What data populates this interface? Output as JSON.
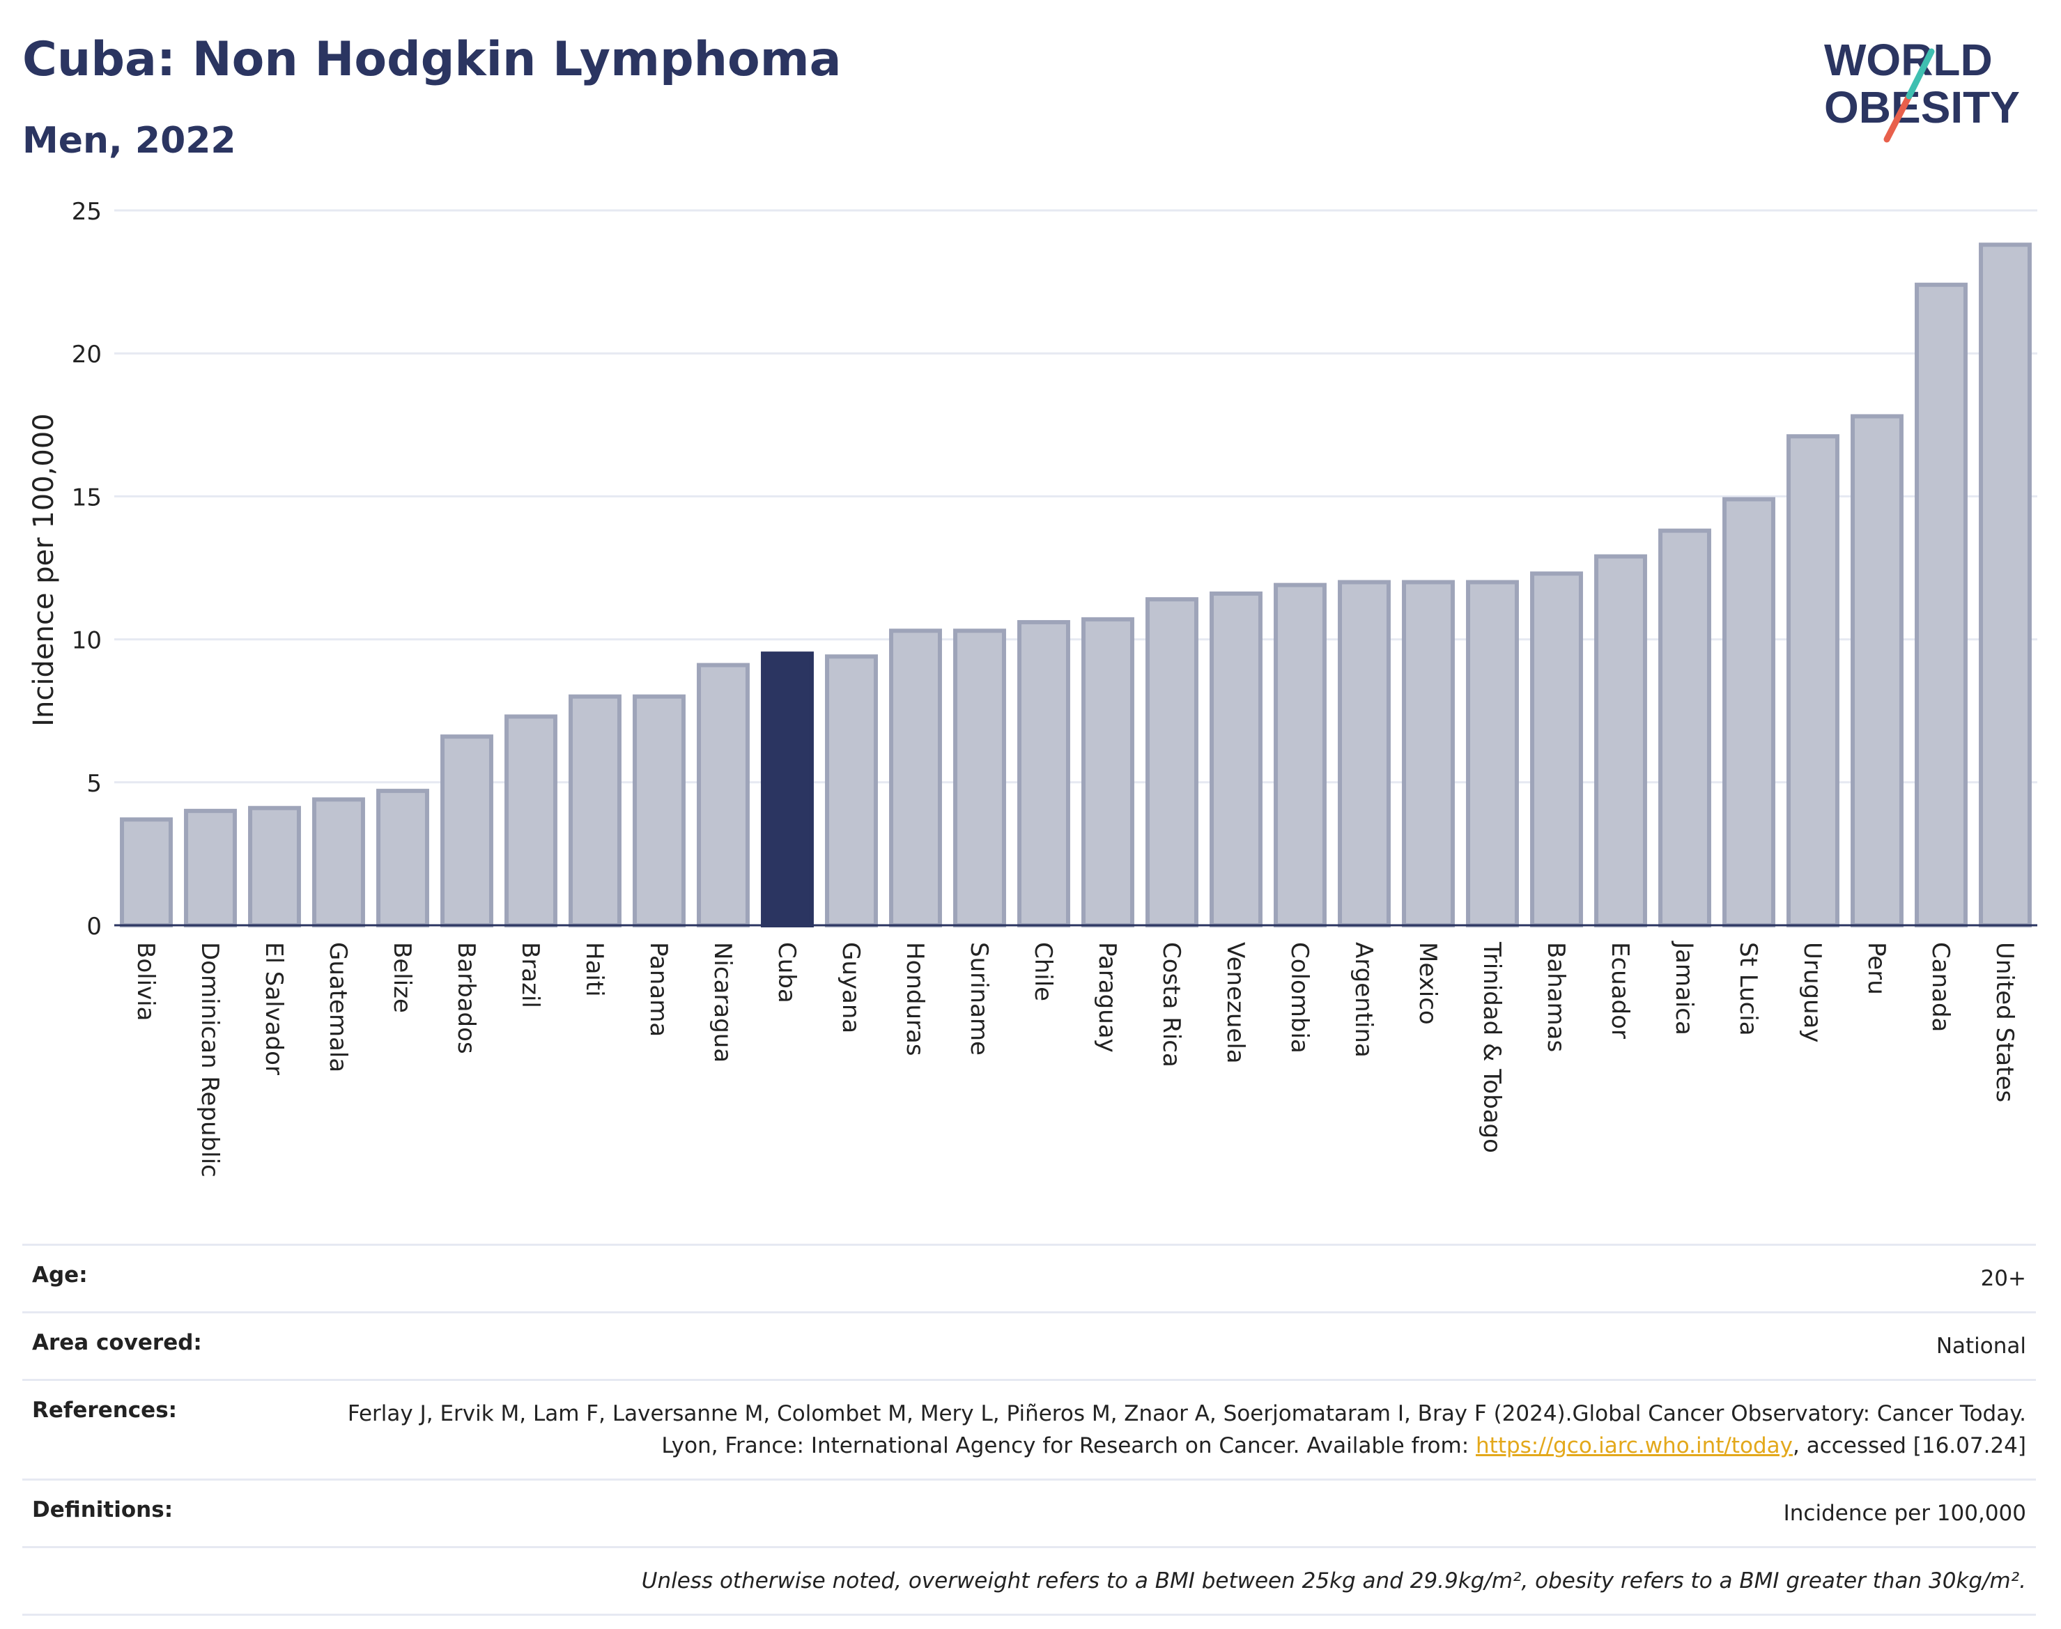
{
  "header": {
    "title": "Cuba: Non Hodgkin Lymphoma",
    "subtitle": "Men, 2022"
  },
  "logo": {
    "line1": "WORLD",
    "line2": "OBESITY",
    "accent_teal": "#3fbfb0",
    "accent_red": "#e8604c",
    "text_color": "#2b3561"
  },
  "chart_data": {
    "type": "bar",
    "title": "Cuba: Non Hodgkin Lymphoma",
    "subtitle": "Men, 2022",
    "xlabel": "",
    "ylabel": "Incidence per 100,000",
    "ylim": [
      0,
      25
    ],
    "yticks": [
      0,
      5,
      10,
      15,
      20,
      25
    ],
    "grid": true,
    "highlight": "Cuba",
    "colors": {
      "highlight": "#2b3561",
      "bar": "#bfc3d0",
      "bar_border": "#9ea4b9"
    },
    "categories": [
      "Bolivia",
      "Dominican Republic",
      "El Salvador",
      "Guatemala",
      "Belize",
      "Barbados",
      "Brazil",
      "Haiti",
      "Panama",
      "Nicaragua",
      "Cuba",
      "Guyana",
      "Honduras",
      "Suriname",
      "Chile",
      "Paraguay",
      "Costa Rica",
      "Venezuela",
      "Colombia",
      "Argentina",
      "Mexico",
      "Trinidad & Tobago",
      "Bahamas",
      "Ecuador",
      "Jamaica",
      "St Lucia",
      "Uruguay",
      "Peru",
      "Canada",
      "United States"
    ],
    "values": [
      3.7,
      4.0,
      4.1,
      4.4,
      4.7,
      6.6,
      7.3,
      8.0,
      8.0,
      9.1,
      9.5,
      9.4,
      10.3,
      10.3,
      10.6,
      10.7,
      11.4,
      11.6,
      11.9,
      12.0,
      12.0,
      12.0,
      12.3,
      12.9,
      13.8,
      14.9,
      17.1,
      17.8,
      22.4,
      23.8
    ]
  },
  "meta": [
    {
      "label": "Age:",
      "value": "20+"
    },
    {
      "label": "Area covered:",
      "value": "National"
    },
    {
      "label": "References:",
      "value_pre": "Ferlay J, Ervik M, Lam F, Laversanne M, Colombet M, Mery L, Piñeros M, Znaor A, Soerjomataram I, Bray F (2024).Global Cancer Observatory: Cancer Today. Lyon, France: International Agency for Research on Cancer. Available from: ",
      "link": "https://gco.iarc.who.int/today",
      "value_post": ", accessed [16.07.24]"
    },
    {
      "label": "Definitions:",
      "value": "Incidence per 100,000"
    },
    {
      "label": "",
      "value": "Unless otherwise noted, overweight refers to a BMI between 25kg and 29.9kg/m², obesity refers to a BMI greater than 30kg/m²."
    }
  ]
}
